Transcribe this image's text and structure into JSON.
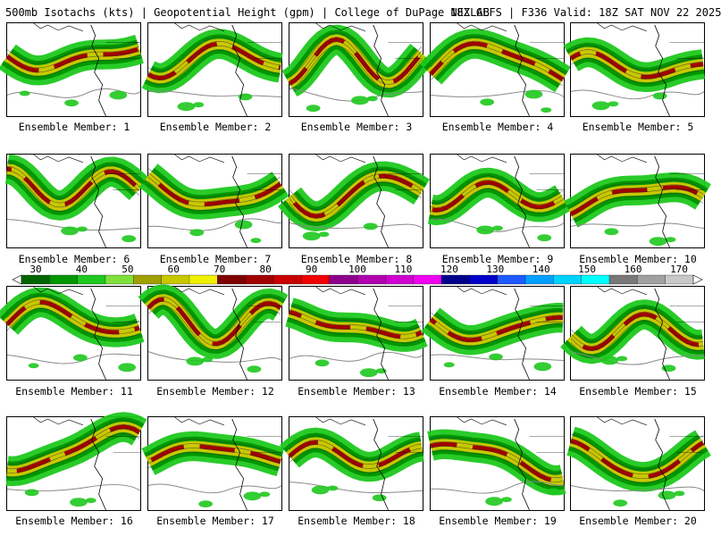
{
  "header": {
    "title": "500mb Isotachs (kts) | Geopotential Height (gpm) | College of DuPage NEXLAB",
    "run": "18Z GEFS | F336 Valid: 18Z SAT NOV 22 2025"
  },
  "colorbar": {
    "tick_labels": [
      "30",
      "40",
      "50",
      "60",
      "70",
      "80",
      "90",
      "100",
      "110",
      "120",
      "130",
      "140",
      "150",
      "160",
      "170"
    ],
    "colors": [
      "#006400",
      "#009600",
      "#1ec81e",
      "#7fe03b",
      "#a0a000",
      "#c8c800",
      "#f0f000",
      "#7f0000",
      "#a00000",
      "#c80000",
      "#f00000",
      "#8c008c",
      "#b000b0",
      "#d000d0",
      "#f000f0",
      "#00008c",
      "#0000c8",
      "#1e5aff",
      "#00a0ff",
      "#00d2ff",
      "#00ffff",
      "#787878",
      "#a0a0a0",
      "#c8c8c8"
    ]
  },
  "members": [
    {
      "label": "Ensemble Member: 1"
    },
    {
      "label": "Ensemble Member: 2"
    },
    {
      "label": "Ensemble Member: 3"
    },
    {
      "label": "Ensemble Member: 4"
    },
    {
      "label": "Ensemble Member: 5"
    },
    {
      "label": "Ensemble Member: 6"
    },
    {
      "label": "Ensemble Member: 7"
    },
    {
      "label": "Ensemble Member: 8"
    },
    {
      "label": "Ensemble Member: 9"
    },
    {
      "label": "Ensemble Member: 10"
    },
    {
      "label": "Ensemble Member: 11"
    },
    {
      "label": "Ensemble Member: 12"
    },
    {
      "label": "Ensemble Member: 13"
    },
    {
      "label": "Ensemble Member: 14"
    },
    {
      "label": "Ensemble Member: 15"
    },
    {
      "label": "Ensemble Member: 16"
    },
    {
      "label": "Ensemble Member: 17"
    },
    {
      "label": "Ensemble Member: 18"
    },
    {
      "label": "Ensemble Member: 19"
    },
    {
      "label": "Ensemble Member: 20"
    }
  ]
}
